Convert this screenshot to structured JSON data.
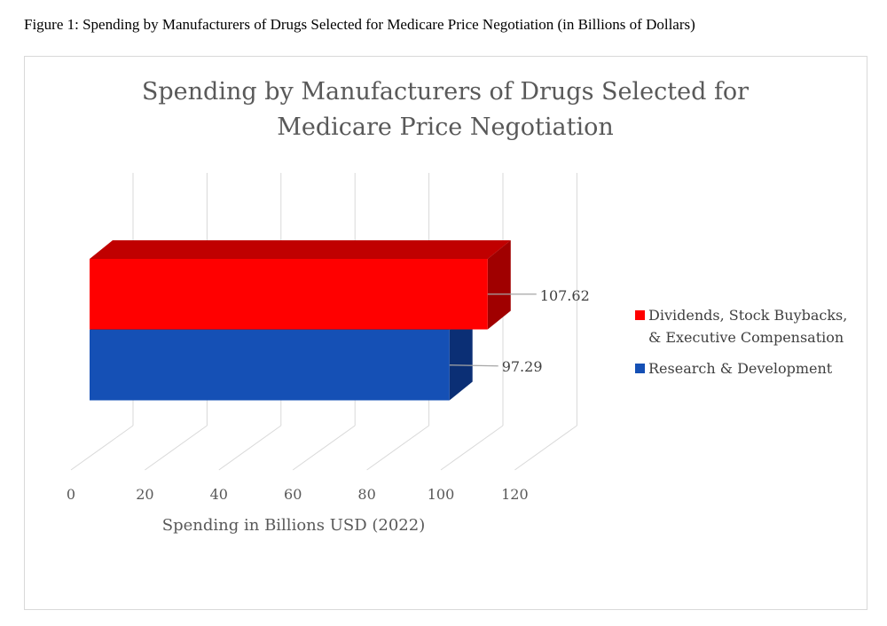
{
  "figure_caption": "Figure 1: Spending by Manufacturers of Drugs Selected for Medicare Price Negotiation (in Billions of Dollars)",
  "chart_data": {
    "type": "bar",
    "orientation": "horizontal",
    "style": "3d-clustered",
    "title_lines": [
      "Spending by Manufacturers of Drugs Selected for",
      "Medicare Price Negotiation"
    ],
    "xlabel": "Spending in Billions USD (2022)",
    "ylabel": "",
    "xlim": [
      0,
      120
    ],
    "xticks": [
      "0",
      "20",
      "40",
      "60",
      "80",
      "100",
      "120"
    ],
    "tick_values": [
      0,
      20,
      40,
      60,
      80,
      100,
      120
    ],
    "grid": true,
    "legend_position": "right",
    "series": [
      {
        "name": "Dividends, Stock Buybacks, & Executive Compensation",
        "legend_lines": [
          "Dividends, Stock Buybacks,",
          "& Executive Compensation"
        ],
        "value": 107.62,
        "label": "107.62",
        "color": "#FF0000",
        "top_color": "#C00000",
        "side_color": "#A00000"
      },
      {
        "name": "Research & Development",
        "legend_lines": [
          "Research & Development"
        ],
        "value": 97.29,
        "label": "97.29",
        "color": "#1550B5",
        "top_color": "#0E3A8A",
        "side_color": "#0B2F75"
      }
    ]
  }
}
